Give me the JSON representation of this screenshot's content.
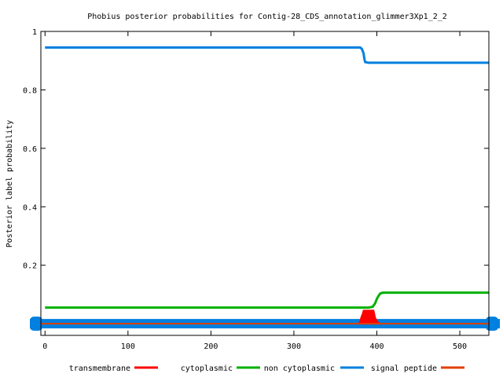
{
  "chart_data": {
    "type": "line",
    "title": "Phobius posterior probabilities for Contig-28_CDS_annotation_glimmer3Xp1_2_2",
    "xlabel": "",
    "ylabel": "Posterior label probability",
    "xlim": [
      -5,
      535
    ],
    "ylim": [
      -0.04,
      1.0
    ],
    "x_ticks": [
      0,
      100,
      200,
      300,
      400,
      500
    ],
    "y_ticks": [
      0.2,
      0.4,
      0.6,
      0.8,
      1
    ],
    "y_tick_labels": [
      "0.2",
      "0.4",
      "0.6",
      "0.8",
      "1"
    ],
    "x_tick_labels": [
      "0",
      "100",
      "200",
      "300",
      "400",
      "500"
    ],
    "grid": false,
    "legend_position": "bottom",
    "series": [
      {
        "name": "transmembrane",
        "color": "#ff0000",
        "style": "filled",
        "x": [
          378,
          380,
          381,
          383,
          384,
          388,
          392,
          396,
          398,
          400,
          403
        ],
        "y": [
          0,
          0.008,
          0.02,
          0.035,
          0.045,
          0.045,
          0.045,
          0.045,
          0.02,
          0.008,
          0
        ]
      },
      {
        "name": "cytoplasmic",
        "color": "#00b000",
        "x": [
          0,
          250,
          390,
          395,
          398,
          400,
          402,
          404,
          407,
          535
        ],
        "y": [
          0.055,
          0.055,
          0.055,
          0.058,
          0.07,
          0.085,
          0.095,
          0.103,
          0.106,
          0.106
        ]
      },
      {
        "name": "non cytoplasmic",
        "color": "#0080e0",
        "x": [
          0,
          200,
          380,
          382,
          384,
          385,
          386,
          390,
          535
        ],
        "y": [
          0.945,
          0.945,
          0.945,
          0.94,
          0.925,
          0.905,
          0.895,
          0.893,
          0.893
        ]
      },
      {
        "name": "signal peptide",
        "color": "#e04000",
        "x": [
          -5,
          535
        ],
        "y": [
          0,
          0
        ]
      }
    ]
  }
}
